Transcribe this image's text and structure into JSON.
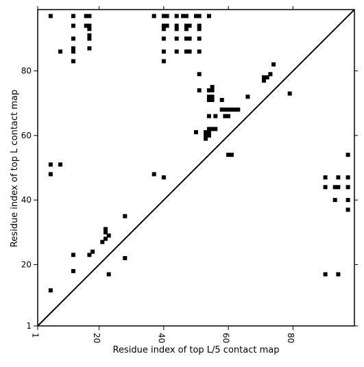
{
  "chart_data": {
    "type": "scatter",
    "title": "",
    "xlabel": "Residue index of top L/5 contact map",
    "ylabel": "Residue index of top L contact map",
    "xlim": [
      1,
      99
    ],
    "ylim": [
      1,
      99
    ],
    "x_ticks": [
      1,
      20,
      40,
      60,
      80
    ],
    "y_ticks": [
      1,
      20,
      40,
      60,
      80
    ],
    "x_tick_labels": [
      "1",
      "20",
      "40",
      "60",
      "80"
    ],
    "y_tick_labels": [
      "1",
      "20",
      "40",
      "60",
      "80"
    ],
    "grid": false,
    "diagonal_line": true,
    "marker": "square",
    "colors": {
      "marker": "#000000",
      "axes": "#000000",
      "background": "#ffffff"
    },
    "series": [
      {
        "values": [
          [
            5,
            97
          ],
          [
            12,
            97
          ],
          [
            16,
            97
          ],
          [
            17,
            97
          ],
          [
            37,
            97
          ],
          [
            40,
            97
          ],
          [
            41,
            97
          ],
          [
            44,
            97
          ],
          [
            46,
            97
          ],
          [
            47,
            97
          ],
          [
            50,
            97
          ],
          [
            51,
            97
          ],
          [
            54,
            97
          ],
          [
            12,
            94
          ],
          [
            16,
            94
          ],
          [
            17,
            94
          ],
          [
            40,
            94
          ],
          [
            41,
            94
          ],
          [
            44,
            94
          ],
          [
            47,
            94
          ],
          [
            48,
            94
          ],
          [
            51,
            94
          ],
          [
            17,
            93
          ],
          [
            40,
            93
          ],
          [
            44,
            93
          ],
          [
            47,
            93
          ],
          [
            51,
            93
          ],
          [
            17,
            91
          ],
          [
            17,
            90
          ],
          [
            12,
            90
          ],
          [
            40,
            90
          ],
          [
            44,
            90
          ],
          [
            47,
            90
          ],
          [
            48,
            90
          ],
          [
            51,
            90
          ],
          [
            12,
            87
          ],
          [
            17,
            87
          ],
          [
            8,
            86
          ],
          [
            12,
            86
          ],
          [
            40,
            86
          ],
          [
            44,
            86
          ],
          [
            47,
            86
          ],
          [
            48,
            86
          ],
          [
            51,
            86
          ],
          [
            12,
            83
          ],
          [
            40,
            83
          ],
          [
            74,
            82
          ],
          [
            51,
            79
          ],
          [
            73,
            79
          ],
          [
            71,
            78
          ],
          [
            72,
            78
          ],
          [
            71,
            77
          ],
          [
            55,
            75
          ],
          [
            51,
            74
          ],
          [
            54,
            74
          ],
          [
            55,
            74
          ],
          [
            79,
            73
          ],
          [
            54,
            72
          ],
          [
            55,
            72
          ],
          [
            66,
            72
          ],
          [
            54,
            71
          ],
          [
            55,
            71
          ],
          [
            58,
            71
          ],
          [
            58,
            68
          ],
          [
            59,
            68
          ],
          [
            60,
            68
          ],
          [
            61,
            68
          ],
          [
            62,
            68
          ],
          [
            63,
            68
          ],
          [
            54,
            66
          ],
          [
            56,
            66
          ],
          [
            59,
            66
          ],
          [
            60,
            66
          ],
          [
            54,
            62
          ],
          [
            55,
            62
          ],
          [
            56,
            62
          ],
          [
            50,
            61
          ],
          [
            53,
            61
          ],
          [
            54,
            61
          ],
          [
            53,
            60
          ],
          [
            54,
            60
          ],
          [
            53,
            59
          ],
          [
            60,
            54
          ],
          [
            61,
            54
          ],
          [
            97,
            54
          ],
          [
            5,
            51
          ],
          [
            8,
            51
          ],
          [
            5,
            48
          ],
          [
            37,
            48
          ],
          [
            40,
            47
          ],
          [
            90,
            47
          ],
          [
            94,
            47
          ],
          [
            97,
            47
          ],
          [
            90,
            44
          ],
          [
            93,
            44
          ],
          [
            94,
            44
          ],
          [
            97,
            44
          ],
          [
            93,
            40
          ],
          [
            97,
            40
          ],
          [
            97,
            37
          ],
          [
            28,
            35
          ],
          [
            22,
            31
          ],
          [
            22,
            30
          ],
          [
            23,
            29
          ],
          [
            22,
            28
          ],
          [
            21,
            27
          ],
          [
            18,
            24
          ],
          [
            12,
            23
          ],
          [
            17,
            23
          ],
          [
            28,
            22
          ],
          [
            12,
            18
          ],
          [
            23,
            17
          ],
          [
            90,
            17
          ],
          [
            94,
            17
          ],
          [
            5,
            12
          ]
        ]
      }
    ]
  }
}
